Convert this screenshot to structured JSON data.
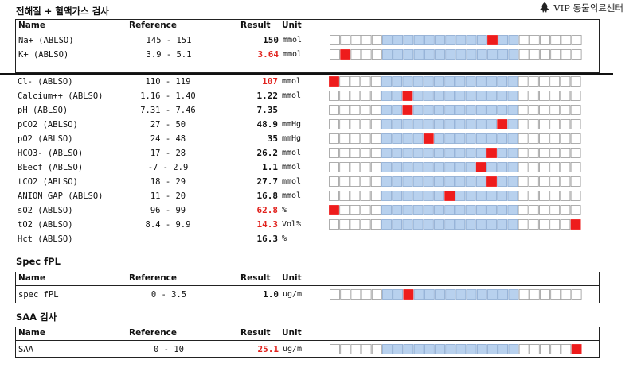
{
  "header": {
    "title": "전해질 + 혈액가스 검사",
    "logo_text": "VIP 동물의료센터"
  },
  "columns": {
    "name": "Name",
    "reference": "Reference",
    "result": "Result",
    "unit": "Unit"
  },
  "bar_cells": 24,
  "sections": [
    {
      "title": "",
      "rows": [
        {
          "name": "Na+ (ABLSO)",
          "ref": "145 - 151",
          "value": "150",
          "unit": "mmol",
          "abnormal": false,
          "marker": 15
        },
        {
          "name": "K+ (ABLSO)",
          "ref": "3.9 - 5.1",
          "value": "3.64",
          "unit": "mmol",
          "abnormal": true,
          "marker": 1
        }
      ]
    },
    {
      "title": "",
      "rows": [
        {
          "name": "Cl- (ABLSO)",
          "ref": "110 - 119",
          "value": "107",
          "unit": "mmol",
          "abnormal": true,
          "marker": 0
        },
        {
          "name": "Calcium++ (ABLSO)",
          "ref": "1.16 - 1.40",
          "value": "1.22",
          "unit": "mmol",
          "abnormal": false,
          "marker": 7
        },
        {
          "name": "pH (ABLSO)",
          "ref": "7.31 - 7.46",
          "value": "7.35",
          "unit": "",
          "abnormal": false,
          "marker": 7
        },
        {
          "name": "pCO2 (ABLSO)",
          "ref": "27 - 50",
          "value": "48.9",
          "unit": "mmHg",
          "abnormal": false,
          "marker": 16
        },
        {
          "name": "pO2 (ABLSO)",
          "ref": "24 - 48",
          "value": "35",
          "unit": "mmHg",
          "abnormal": false,
          "marker": 9
        },
        {
          "name": "HCO3- (ABLSO)",
          "ref": "17 - 28",
          "value": "26.2",
          "unit": "mmol",
          "abnormal": false,
          "marker": 15
        },
        {
          "name": "BEecf (ABLSO)",
          "ref": "-7 - 2.9",
          "value": "1.1",
          "unit": "mmol",
          "abnormal": false,
          "marker": 14
        },
        {
          "name": "tCO2 (ABLSO)",
          "ref": "18 - 29",
          "value": "27.7",
          "unit": "mmol",
          "abnormal": false,
          "marker": 15
        },
        {
          "name": "ANION GAP (ABLSO)",
          "ref": "11 - 20",
          "value": "16.8",
          "unit": "mmol",
          "abnormal": false,
          "marker": 11
        },
        {
          "name": "sO2 (ABLSO)",
          "ref": "96 - 99",
          "value": "62.8",
          "unit": "%",
          "abnormal": true,
          "marker": 0
        },
        {
          "name": "tO2 (ABLSO)",
          "ref": "8.4 - 9.9",
          "value": "14.3",
          "unit": "Vol%",
          "abnormal": true,
          "marker": 23
        },
        {
          "name": "Hct (ABLSO)",
          "ref": "",
          "value": "16.3",
          "unit": "%",
          "abnormal": false,
          "marker": null
        }
      ]
    },
    {
      "title": "Spec fPL",
      "rows": [
        {
          "name": "spec fPL",
          "ref": "0 - 3.5",
          "value": "1.0",
          "unit": "ug/m",
          "abnormal": false,
          "marker": 7
        }
      ]
    },
    {
      "title": "SAA 검사",
      "rows": [
        {
          "name": "SAA",
          "ref": "0 - 10",
          "value": "25.1",
          "unit": "ug/m",
          "abnormal": true,
          "marker": 23
        }
      ]
    }
  ],
  "colors": {
    "range_fill": "#b8d1ee",
    "range_border": "#8aa9d0",
    "marker": "#ee1c1c",
    "cell_border": "#9a9a9a",
    "abnormal_text": "#e1221d"
  }
}
